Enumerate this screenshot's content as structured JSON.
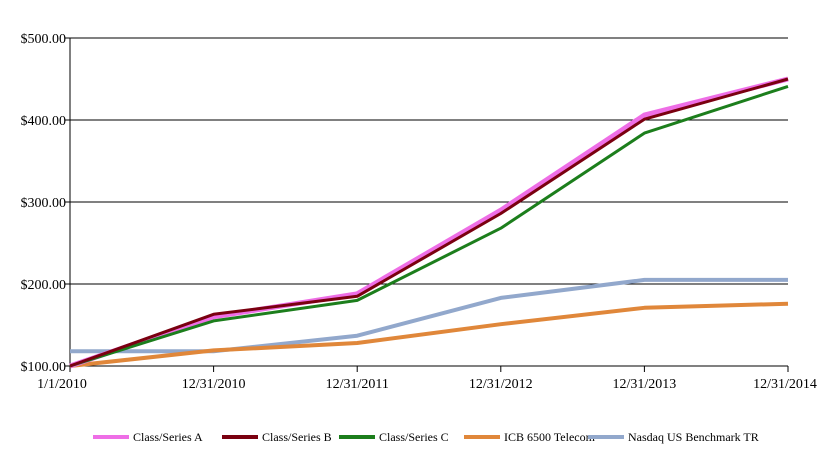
{
  "chart_data": {
    "type": "line",
    "title": "",
    "xlabel": "",
    "ylabel": "",
    "categories": [
      "1/1/2010",
      "12/31/2010",
      "12/31/2011",
      "12/31/2012",
      "12/31/2013",
      "12/31/2014"
    ],
    "y_ticks": [
      "$100.00",
      "$200.00",
      "$300.00",
      "$400.00",
      "$500.00"
    ],
    "ylim": [
      100,
      500
    ],
    "grid": "horizontal",
    "legend_position": "bottom",
    "series": [
      {
        "name": "Class/Series A",
        "color": "#ee6ee6",
        "values": [
          100,
          160,
          188,
          290,
          406,
          450
        ]
      },
      {
        "name": "Class/Series B",
        "color": "#7a0010",
        "values": [
          100,
          163,
          185,
          286,
          401,
          450
        ]
      },
      {
        "name": "Class/Series C",
        "color": "#1c7e1c",
        "values": [
          100,
          155,
          180,
          268,
          384,
          441
        ]
      },
      {
        "name": "ICB 6500 Telecom",
        "color": "#e0873a",
        "values": [
          100,
          119,
          128,
          151,
          171,
          176
        ]
      },
      {
        "name": "Nasdaq US Benchmark TR",
        "color": "#92a8cc",
        "values": [
          118,
          118,
          137,
          183,
          205,
          205
        ]
      }
    ]
  }
}
